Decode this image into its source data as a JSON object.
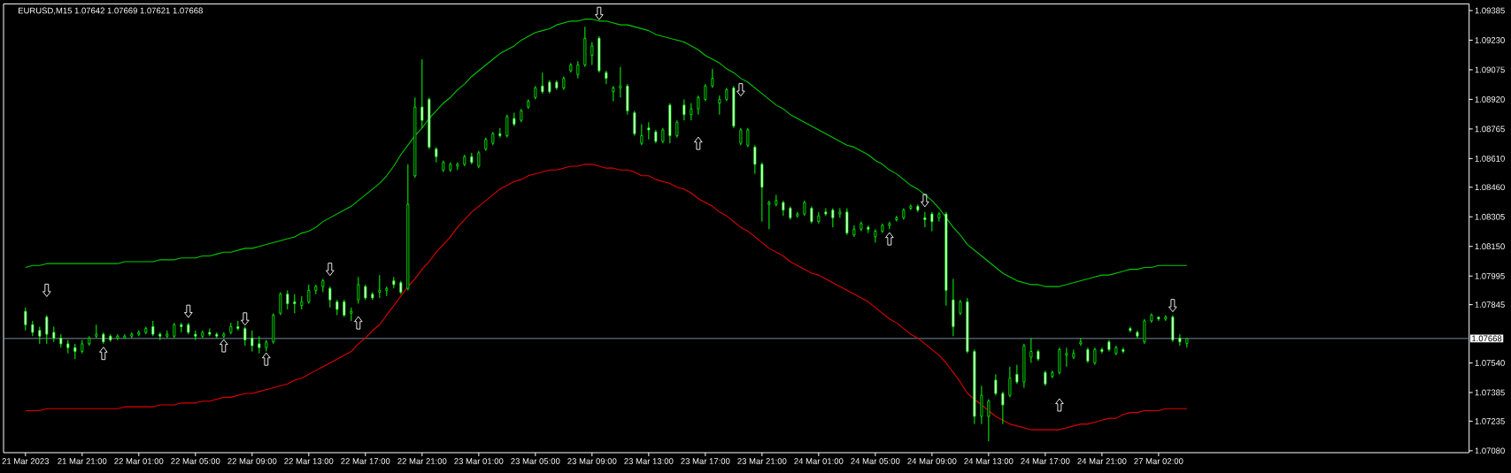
{
  "chart_data": {
    "type": "candlestick",
    "title": "EURUSD,M15 1.07642 1.07669 1.07621 1.07668",
    "categories": [
      "21 Mar 2023",
      null,
      null,
      null,
      null,
      null,
      null,
      null,
      "21 Mar 21:00",
      null,
      null,
      null,
      null,
      null,
      null,
      null,
      "22 Mar 01:00",
      null,
      null,
      null,
      null,
      null,
      null,
      null,
      "22 Mar 05:00",
      null,
      null,
      null,
      null,
      null,
      null,
      null,
      "22 Mar 09:00",
      null,
      null,
      null,
      null,
      null,
      null,
      null,
      "22 Mar 13:00",
      null,
      null,
      null,
      null,
      null,
      null,
      null,
      "22 Mar 17:00",
      null,
      null,
      null,
      null,
      null,
      null,
      null,
      "22 Mar 21:00",
      null,
      null,
      null,
      null,
      null,
      null,
      null,
      "23 Mar 01:00",
      null,
      null,
      null,
      null,
      null,
      null,
      null,
      "23 Mar 05:00",
      null,
      null,
      null,
      null,
      null,
      null,
      null,
      "23 Mar 09:00",
      null,
      null,
      null,
      null,
      null,
      null,
      null,
      "23 Mar 13:00",
      null,
      null,
      null,
      null,
      null,
      null,
      null,
      "23 Mar 17:00",
      null,
      null,
      null,
      null,
      null,
      null,
      null,
      "23 Mar 21:00",
      null,
      null,
      null,
      null,
      null,
      null,
      null,
      "24 Mar 01:00",
      null,
      null,
      null,
      null,
      null,
      null,
      null,
      "24 Mar 05:00",
      null,
      null,
      null,
      null,
      null,
      null,
      null,
      "24 Mar 09:00",
      null,
      null,
      null,
      null,
      null,
      null,
      null,
      "24 Mar 13:00",
      null,
      null,
      null,
      null,
      null,
      null,
      null,
      "24 Mar 17:00",
      null,
      null,
      null,
      null,
      null,
      null,
      null,
      "24 Mar 21:00",
      null,
      null,
      null,
      null,
      null,
      null,
      null,
      "27 Mar 02:00",
      null,
      null,
      null,
      null
    ],
    "ylim": [
      1.0707,
      1.0942
    ],
    "yticks": [
      {
        "value": 1.0708,
        "label": "1.07080"
      },
      {
        "value": 1.07235,
        "label": "1.07235"
      },
      {
        "value": 1.07385,
        "label": "1.07385"
      },
      {
        "value": 1.0754,
        "label": "1.07540"
      },
      {
        "value": 1.07845,
        "label": "1.07845"
      },
      {
        "value": 1.07995,
        "label": "1.07995"
      },
      {
        "value": 1.0815,
        "label": "1.08150"
      },
      {
        "value": 1.08305,
        "label": "1.08305"
      },
      {
        "value": 1.0846,
        "label": "1.08460"
      },
      {
        "value": 1.0861,
        "label": "1.08610"
      },
      {
        "value": 1.08765,
        "label": "1.08765"
      },
      {
        "value": 1.0892,
        "label": "1.08920"
      },
      {
        "value": 1.09075,
        "label": "1.09075"
      },
      {
        "value": 1.0923,
        "label": "1.09230"
      },
      {
        "value": 1.09385,
        "label": "1.09385"
      }
    ],
    "color": "#00ff00",
    "ohlc": [
      [
        1.0781,
        1.0783,
        1.0771,
        1.0774
      ],
      [
        1.0774,
        1.0776,
        1.0768,
        1.077
      ],
      [
        1.0771,
        1.0773,
        1.0764,
        1.0768
      ],
      [
        1.0778,
        1.0779,
        1.0764,
        1.0769
      ],
      [
        1.077,
        1.0773,
        1.0765,
        1.0767
      ],
      [
        1.0767,
        1.0769,
        1.0762,
        1.0764
      ],
      [
        1.0764,
        1.0766,
        1.0759,
        1.0762
      ],
      [
        1.0762,
        1.0764,
        1.0756,
        1.076
      ],
      [
        1.076,
        1.0766,
        1.0759,
        1.0764
      ],
      [
        1.0764,
        1.0768,
        1.0763,
        1.0767
      ],
      [
        1.0768,
        1.0774,
        1.0767,
        1.0769
      ],
      [
        1.0769,
        1.077,
        1.0764,
        1.0765
      ],
      [
        1.0768,
        1.0769,
        1.0765,
        1.0766
      ],
      [
        1.0767,
        1.0769,
        1.0766,
        1.0768
      ],
      [
        1.0767,
        1.0769,
        1.0767,
        1.0768
      ],
      [
        1.0768,
        1.077,
        1.0767,
        1.0769
      ],
      [
        1.0769,
        1.0771,
        1.0768,
        1.077
      ],
      [
        1.077,
        1.0773,
        1.0769,
        1.0772
      ],
      [
        1.0773,
        1.0776,
        1.0768,
        1.0769
      ],
      [
        1.0769,
        1.077,
        1.0766,
        1.0768
      ],
      [
        1.0768,
        1.0771,
        1.0767,
        1.0769
      ],
      [
        1.0768,
        1.0775,
        1.0767,
        1.0774
      ],
      [
        1.0774,
        1.0775,
        1.077,
        1.0773
      ],
      [
        1.0774,
        1.0775,
        1.0769,
        1.077
      ],
      [
        1.0769,
        1.0771,
        1.0766,
        1.0768
      ],
      [
        1.0768,
        1.0771,
        1.0767,
        1.077
      ],
      [
        1.077,
        1.0772,
        1.0768,
        1.0769
      ],
      [
        1.0769,
        1.077,
        1.0767,
        1.0768
      ],
      [
        1.0768,
        1.077,
        1.0767,
        1.0769
      ],
      [
        1.077,
        1.0775,
        1.0769,
        1.0773
      ],
      [
        1.0773,
        1.0776,
        1.0771,
        1.0772
      ],
      [
        1.0772,
        1.0773,
        1.0763,
        1.0766
      ],
      [
        1.0767,
        1.0771,
        1.076,
        1.0763
      ],
      [
        1.0764,
        1.0768,
        1.0759,
        1.0762
      ],
      [
        1.0762,
        1.0766,
        1.076,
        1.0765
      ],
      [
        1.0765,
        1.078,
        1.0764,
        1.0779
      ],
      [
        1.078,
        1.0791,
        1.0779,
        1.079
      ],
      [
        1.079,
        1.0792,
        1.0782,
        1.0785
      ],
      [
        1.0786,
        1.079,
        1.078,
        1.0785
      ],
      [
        1.0784,
        1.0789,
        1.0782,
        1.0786
      ],
      [
        1.0786,
        1.0795,
        1.0785,
        1.0792
      ],
      [
        1.0792,
        1.0795,
        1.079,
        1.0794
      ],
      [
        1.0794,
        1.0798,
        1.0791,
        1.0797
      ],
      [
        1.0793,
        1.0794,
        1.0783,
        1.0787
      ],
      [
        1.0786,
        1.0787,
        1.0779,
        1.0782
      ],
      [
        1.0786,
        1.0787,
        1.0778,
        1.0779
      ],
      [
        1.078,
        1.0783,
        1.0776,
        1.0781
      ],
      [
        1.0787,
        1.0799,
        1.0785,
        1.0795
      ],
      [
        1.0794,
        1.0795,
        1.0787,
        1.0788
      ],
      [
        1.079,
        1.0791,
        1.0787,
        1.0788
      ],
      [
        1.0791,
        1.08,
        1.0788,
        1.0792
      ],
      [
        1.0792,
        1.0794,
        1.0789,
        1.0793
      ],
      [
        1.0797,
        1.0799,
        1.0793,
        1.0795
      ],
      [
        1.0796,
        1.0797,
        1.079,
        1.0791
      ],
      [
        1.0793,
        1.0858,
        1.0792,
        1.0837
      ],
      [
        1.0852,
        1.0893,
        1.0851,
        1.0888
      ],
      [
        1.0888,
        1.0913,
        1.0877,
        1.0881
      ],
      [
        1.0892,
        1.0893,
        1.0866,
        1.0867
      ],
      [
        1.0866,
        1.0867,
        1.0859,
        1.0862
      ],
      [
        1.0855,
        1.086,
        1.0854,
        1.0859
      ],
      [
        1.0855,
        1.0859,
        1.0854,
        1.0858
      ],
      [
        1.0857,
        1.0859,
        1.0855,
        1.0858
      ],
      [
        1.0858,
        1.0863,
        1.0857,
        1.0862
      ],
      [
        1.0862,
        1.0864,
        1.0858,
        1.0859
      ],
      [
        1.0857,
        1.0865,
        1.0856,
        1.0864
      ],
      [
        1.0866,
        1.0872,
        1.0865,
        1.0871
      ],
      [
        1.0869,
        1.0875,
        1.0868,
        1.0874
      ],
      [
        1.0874,
        1.0877,
        1.0872,
        1.0873
      ],
      [
        1.0873,
        1.0884,
        1.0872,
        1.0883
      ],
      [
        1.0882,
        1.0885,
        1.0878,
        1.0879
      ],
      [
        1.0881,
        1.0887,
        1.088,
        1.0886
      ],
      [
        1.0888,
        1.0892,
        1.0887,
        1.0891
      ],
      [
        1.0893,
        1.0899,
        1.0892,
        1.0898
      ],
      [
        1.0899,
        1.0906,
        1.0895,
        1.0896
      ],
      [
        1.0901,
        1.0902,
        1.0895,
        1.0896
      ],
      [
        1.0901,
        1.0902,
        1.0897,
        1.0898
      ],
      [
        1.0898,
        1.0904,
        1.0897,
        1.0903
      ],
      [
        1.0907,
        1.0911,
        1.0906,
        1.091
      ],
      [
        1.0905,
        1.0912,
        1.0903,
        1.091
      ],
      [
        1.091,
        1.093,
        1.0909,
        1.0924
      ],
      [
        1.0915,
        1.0922,
        1.091,
        1.092
      ],
      [
        1.0924,
        1.0925,
        1.0906,
        1.0907
      ],
      [
        1.0906,
        1.0907,
        1.09,
        1.0903
      ],
      [
        1.0896,
        1.0899,
        1.0891,
        1.0898
      ],
      [
        1.0898,
        1.0909,
        1.0893,
        1.0899
      ],
      [
        1.0899,
        1.09,
        1.0884,
        1.0886
      ],
      [
        1.0885,
        1.0886,
        1.0873,
        1.0874
      ],
      [
        1.0869,
        1.0879,
        1.0868,
        1.0873
      ],
      [
        1.0877,
        1.088,
        1.0871,
        1.0876
      ],
      [
        1.0875,
        1.0876,
        1.0869,
        1.087
      ],
      [
        1.087,
        1.0877,
        1.0869,
        1.0876
      ],
      [
        1.0889,
        1.089,
        1.0869,
        1.0873
      ],
      [
        1.0873,
        1.0881,
        1.0872,
        1.088
      ],
      [
        1.0889,
        1.0892,
        1.0881,
        1.0884
      ],
      [
        1.0884,
        1.089,
        1.0881,
        1.0887
      ],
      [
        1.0887,
        1.0894,
        1.0884,
        1.0893
      ],
      [
        1.0892,
        1.09,
        1.0891,
        1.0899
      ],
      [
        1.0899,
        1.0908,
        1.0898,
        1.0903
      ],
      [
        1.089,
        1.0894,
        1.0884,
        1.0892
      ],
      [
        1.0892,
        1.0898,
        1.0891,
        1.0897
      ],
      [
        1.0898,
        1.0899,
        1.0877,
        1.0878
      ],
      [
        1.0869,
        1.0877,
        1.0868,
        1.0876
      ],
      [
        1.0868,
        1.0877,
        1.0867,
        1.0876
      ],
      [
        1.0867,
        1.0868,
        1.0853,
        1.0858
      ],
      [
        1.0858,
        1.0859,
        1.0828,
        1.0846
      ],
      [
        1.0837,
        1.0839,
        1.0824,
        1.0838
      ],
      [
        1.0837,
        1.0842,
        1.0836,
        1.0839
      ],
      [
        1.0838,
        1.0839,
        1.0831,
        1.0834
      ],
      [
        1.0835,
        1.0836,
        1.0829,
        1.083
      ],
      [
        1.0831,
        1.0833,
        1.083,
        1.0832
      ],
      [
        1.0832,
        1.0839,
        1.0831,
        1.0838
      ],
      [
        1.0835,
        1.0836,
        1.0827,
        1.0828
      ],
      [
        1.0828,
        1.0833,
        1.0827,
        1.0831
      ],
      [
        1.0833,
        1.0835,
        1.0831,
        1.0832
      ],
      [
        1.0834,
        1.0835,
        1.0825,
        1.083
      ],
      [
        1.0832,
        1.0835,
        1.083,
        1.0833
      ],
      [
        1.0833,
        1.0835,
        1.0821,
        1.0822
      ],
      [
        1.0821,
        1.0826,
        1.082,
        1.0824
      ],
      [
        1.0824,
        1.0828,
        1.0823,
        1.0827
      ],
      [
        1.0825,
        1.0826,
        1.0822,
        1.0824
      ],
      [
        1.082,
        1.0824,
        1.0817,
        1.0823
      ],
      [
        1.0823,
        1.0827,
        1.0822,
        1.0826
      ],
      [
        1.0826,
        1.0828,
        1.0824,
        1.0827
      ],
      [
        1.0829,
        1.0831,
        1.0828,
        1.083
      ],
      [
        1.083,
        1.0835,
        1.0829,
        1.0834
      ],
      [
        1.0835,
        1.0837,
        1.0834,
        1.0836
      ],
      [
        1.0836,
        1.0837,
        1.0833,
        1.0834
      ],
      [
        1.083,
        1.0833,
        1.0825,
        1.0829
      ],
      [
        1.0832,
        1.0833,
        1.0823,
        1.0828
      ],
      [
        1.083,
        1.0833,
        1.0828,
        1.0832
      ],
      [
        1.0832,
        1.0833,
        1.0784,
        1.0792
      ],
      [
        1.0787,
        1.0798,
        1.0768,
        1.0773
      ],
      [
        1.078,
        1.0787,
        1.0779,
        1.0786
      ],
      [
        1.0786,
        1.0788,
        1.0759,
        1.076
      ],
      [
        1.076,
        1.0761,
        1.0722,
        1.0726
      ],
      [
        1.0726,
        1.0742,
        1.0722,
        1.0737
      ],
      [
        1.0726,
        1.0735,
        1.0713,
        1.0734
      ],
      [
        1.0745,
        1.0748,
        1.0737,
        1.0738
      ],
      [
        1.0738,
        1.0739,
        1.0722,
        1.0732
      ],
      [
        1.0737,
        1.0752,
        1.0736,
        1.0746
      ],
      [
        1.0748,
        1.0753,
        1.0743,
        1.0744
      ],
      [
        1.0744,
        1.0764,
        1.0741,
        1.0763
      ],
      [
        1.0757,
        1.0767,
        1.0754,
        1.076
      ],
      [
        1.076,
        1.0761,
        1.0755,
        1.0756
      ],
      [
        1.0749,
        1.075,
        1.0742,
        1.0743
      ],
      [
        1.0747,
        1.075,
        1.0746,
        1.0749
      ],
      [
        1.0749,
        1.0762,
        1.0748,
        1.0761
      ],
      [
        1.0758,
        1.0762,
        1.0752,
        1.0759
      ],
      [
        1.0757,
        1.0761,
        1.0756,
        1.0759
      ],
      [
        1.0764,
        1.0767,
        1.0763,
        1.0765
      ],
      [
        1.0761,
        1.0762,
        1.0754,
        1.0755
      ],
      [
        1.0754,
        1.0762,
        1.0753,
        1.0761
      ],
      [
        1.0761,
        1.0762,
        1.0759,
        1.076
      ],
      [
        1.0765,
        1.0766,
        1.076,
        1.0761
      ],
      [
        1.0759,
        1.0763,
        1.0758,
        1.0762
      ],
      [
        1.0761,
        1.0762,
        1.0759,
        1.076
      ],
      [
        1.0772,
        1.0773,
        1.077,
        1.0771
      ],
      [
        1.077,
        1.0771,
        1.0767,
        1.0768
      ],
      [
        1.0765,
        1.0777,
        1.0764,
        1.0776
      ],
      [
        1.0776,
        1.078,
        1.0775,
        1.0779
      ],
      [
        1.0778,
        1.0778,
        1.0776,
        1.0777
      ],
      [
        1.0777,
        1.0779,
        1.0776,
        1.0778
      ],
      [
        1.0778,
        1.0779,
        1.0765,
        1.0766
      ],
      [
        1.0767,
        1.0769,
        1.0763,
        1.0765
      ],
      [
        1.07642,
        1.07669,
        1.07621,
        1.07668
      ]
    ],
    "colors": [
      "#ffffff",
      "#ffffff",
      "#ffffff",
      "#ffffff",
      "#ffffff",
      "#ffffff",
      "#ffffff",
      "#ffffff",
      "#000000",
      "#000000",
      "#000000",
      "#ffffff",
      "#ffffff",
      "#000000",
      "#000000",
      "#000000",
      "#000000",
      "#000000",
      "#ffffff",
      "#ffffff",
      "#000000",
      "#000000",
      "#ffffff",
      "#ffffff",
      "#ffffff",
      "#000000",
      "#ffffff",
      "#ffffff",
      "#000000",
      "#000000",
      "#ffffff",
      "#ffffff",
      "#ffffff",
      "#ffffff",
      "#000000",
      "#000000",
      "#000000",
      "#ffffff",
      "#ffffff",
      "#000000",
      "#000000",
      "#000000",
      "#000000",
      "#ffffff",
      "#ffffff",
      "#ffffff",
      "#000000",
      "#000000",
      "#ffffff",
      "#ffffff",
      "#000000",
      "#000000",
      "#ffffff",
      "#ffffff",
      "#000000",
      "#000000",
      "#ffffff",
      "#ffffff",
      "#ffffff",
      "#000000",
      "#000000",
      "#000000",
      "#000000",
      "#ffffff",
      "#000000",
      "#000000",
      "#000000",
      "#ffffff",
      "#000000",
      "#ffffff",
      "#000000",
      "#000000",
      "#000000",
      "#ffffff",
      "#ffffff",
      "#ffffff",
      "#000000",
      "#000000",
      "#000000",
      "#000000",
      "#000000",
      "#ffffff",
      "#ffffff",
      "#000000",
      "#000000",
      "#ffffff",
      "#ffffff",
      "#000000",
      "#ffffff",
      "#ffffff",
      "#000000",
      "#ffffff",
      "#000000",
      "#ffffff",
      "#000000",
      "#000000",
      "#000000",
      "#000000",
      "#000000",
      "#000000",
      "#ffffff",
      "#000000",
      "#000000",
      "#ffffff",
      "#ffffff",
      "#000000",
      "#000000",
      "#ffffff",
      "#ffffff",
      "#000000",
      "#000000",
      "#ffffff",
      "#000000",
      "#ffffff",
      "#ffffff",
      "#000000",
      "#ffffff",
      "#000000",
      "#000000",
      "#ffffff",
      "#000000",
      "#000000",
      "#000000",
      "#000000",
      "#000000",
      "#000000",
      "#ffffff",
      "#ffffff",
      "#ffffff",
      "#000000",
      "#ffffff",
      "#ffffff",
      "#000000",
      "#ffffff",
      "#ffffff",
      "#000000",
      "#000000",
      "#ffffff",
      "#ffffff",
      "#000000",
      "#ffffff",
      "#000000",
      "#000000",
      "#ffffff",
      "#ffffff",
      "#000000",
      "#000000",
      "#000000",
      "#000000",
      "#000000",
      "#ffffff",
      "#000000",
      "#ffffff",
      "#ffffff",
      "#000000",
      "#ffffff",
      "#ffffff",
      "#ffffff",
      "#000000",
      "#000000",
      "#ffffff",
      "#000000",
      "#ffffff",
      "#ffffff",
      "#000000"
    ],
    "series": [
      {
        "type": "line",
        "color": "#00c800",
        "values": [
          1.0804,
          1.0805,
          1.0805,
          1.0806,
          1.0806,
          1.0806,
          1.0806,
          1.0806,
          1.0806,
          1.0806,
          1.0806,
          1.0806,
          1.0806,
          1.0806,
          1.0807,
          1.0807,
          1.0807,
          1.0807,
          1.0807,
          1.0808,
          1.0808,
          1.0808,
          1.0809,
          1.0809,
          1.0809,
          1.081,
          1.081,
          1.0811,
          1.0812,
          1.0812,
          1.0813,
          1.0814,
          1.0814,
          1.0815,
          1.0816,
          1.0817,
          1.0818,
          1.0819,
          1.082,
          1.0822,
          1.0823,
          1.0825,
          1.0828,
          1.083,
          1.0832,
          1.0834,
          1.0836,
          1.0839,
          1.0842,
          1.0845,
          1.0848,
          1.0852,
          1.0857,
          1.0863,
          1.0868,
          1.0873,
          1.0877,
          1.0882,
          1.0886,
          1.089,
          1.0893,
          1.0897,
          1.09,
          1.0904,
          1.0907,
          1.091,
          1.0913,
          1.0916,
          1.0918,
          1.092,
          1.0923,
          1.0925,
          1.0927,
          1.0928,
          1.0929,
          1.0931,
          1.0932,
          1.0933,
          1.0933,
          1.0934,
          1.0934,
          1.0933,
          1.0933,
          1.0932,
          1.0931,
          1.0931,
          1.093,
          1.0929,
          1.0928,
          1.0926,
          1.0925,
          1.0924,
          1.0923,
          1.0922,
          1.092,
          1.0918,
          1.0915,
          1.0913,
          1.0911,
          1.0908,
          1.0906,
          1.0903,
          1.0901,
          1.0898,
          1.0895,
          1.0892,
          1.0889,
          1.0887,
          1.0884,
          1.0882,
          1.088,
          1.0878,
          1.0876,
          1.0874,
          1.0872,
          1.087,
          1.0868,
          1.0867,
          1.0865,
          1.0863,
          1.086,
          1.0858,
          1.0855,
          1.0853,
          1.085,
          1.0847,
          1.0845,
          1.0842,
          1.0839,
          1.0835,
          1.083,
          1.0825,
          1.0821,
          1.0816,
          1.0813,
          1.081,
          1.0807,
          1.0804,
          1.0801,
          1.0799,
          1.0797,
          1.0796,
          1.0795,
          1.0795,
          1.0794,
          1.0794,
          1.0794,
          1.0795,
          1.0796,
          1.0797,
          1.0798,
          1.0799,
          1.08,
          1.08,
          1.0801,
          1.0802,
          1.0803,
          1.0803,
          1.0804,
          1.0804,
          1.0805,
          1.0805,
          1.0805,
          1.0805,
          1.0805
        ]
      },
      {
        "type": "line",
        "color": "#e00000",
        "values": [
          1.0729,
          1.0729,
          1.0729,
          1.073,
          1.073,
          1.073,
          1.073,
          1.073,
          1.073,
          1.073,
          1.073,
          1.073,
          1.073,
          1.073,
          1.0731,
          1.0731,
          1.0731,
          1.0731,
          1.0731,
          1.0732,
          1.0732,
          1.0732,
          1.0733,
          1.0733,
          1.0733,
          1.0734,
          1.0734,
          1.0735,
          1.0736,
          1.0736,
          1.0737,
          1.0738,
          1.0738,
          1.0739,
          1.074,
          1.0741,
          1.0742,
          1.0743,
          1.0745,
          1.0746,
          1.0748,
          1.075,
          1.0752,
          1.0754,
          1.0756,
          1.0758,
          1.076,
          1.0764,
          1.0767,
          1.0771,
          1.0774,
          1.0779,
          1.0784,
          1.0789,
          1.0794,
          1.0798,
          1.0803,
          1.0807,
          1.0812,
          1.0816,
          1.082,
          1.0825,
          1.0829,
          1.0833,
          1.0836,
          1.0839,
          1.0842,
          1.0845,
          1.0847,
          1.0849,
          1.085,
          1.0852,
          1.0853,
          1.0854,
          1.0855,
          1.0855,
          1.0856,
          1.0857,
          1.0857,
          1.0858,
          1.0858,
          1.0857,
          1.0856,
          1.0856,
          1.0855,
          1.0855,
          1.0854,
          1.0852,
          1.0852,
          1.085,
          1.0849,
          1.0848,
          1.0846,
          1.0845,
          1.0843,
          1.084,
          1.0838,
          1.0836,
          1.0833,
          1.0831,
          1.0828,
          1.0825,
          1.0823,
          1.082,
          1.0817,
          1.0814,
          1.0812,
          1.081,
          1.0807,
          1.0805,
          1.0803,
          1.0801,
          1.08,
          1.0798,
          1.0796,
          1.0794,
          1.0792,
          1.079,
          1.0788,
          1.0786,
          1.0783,
          1.078,
          1.0777,
          1.0775,
          1.0772,
          1.0769,
          1.0767,
          1.0764,
          1.0761,
          1.0758,
          1.0754,
          1.0749,
          1.0744,
          1.0738,
          1.0735,
          1.0732,
          1.0729,
          1.0726,
          1.0724,
          1.0722,
          1.0721,
          1.072,
          1.0719,
          1.0719,
          1.0719,
          1.0719,
          1.0719,
          1.072,
          1.0721,
          1.0722,
          1.0722,
          1.0723,
          1.0724,
          1.0725,
          1.0725,
          1.0727,
          1.0728,
          1.0728,
          1.0729,
          1.0729,
          1.0729,
          1.073,
          1.073,
          1.073,
          1.073
        ]
      },
      {
        "type": "scatter",
        "color": "#ffffff",
        "marker": "triangle",
        "values": [
          null,
          null,
          null,
          1.0792,
          null,
          null,
          null,
          null,
          null,
          null,
          null,
          1.0759,
          null,
          null,
          null,
          null,
          null,
          null,
          null,
          null,
          null,
          null,
          null,
          1.0781,
          null,
          null,
          null,
          null,
          1.0763,
          null,
          null,
          1.0777,
          null,
          null,
          1.0756,
          null,
          null,
          null,
          null,
          null,
          null,
          null,
          null,
          1.0803,
          null,
          null,
          null,
          1.0775,
          null,
          null,
          null,
          null,
          null,
          null,
          null,
          null,
          null,
          null,
          null,
          null,
          null,
          null,
          null,
          null,
          null,
          null,
          null,
          null,
          null,
          null,
          null,
          null,
          null,
          null,
          null,
          null,
          null,
          null,
          null,
          null,
          null,
          1.0937,
          null,
          null,
          null,
          null,
          null,
          null,
          null,
          null,
          null,
          null,
          null,
          null,
          null,
          1.0869,
          null,
          null,
          null,
          null,
          null,
          1.0897,
          null,
          null,
          null,
          null,
          null,
          null,
          null,
          null,
          null,
          null,
          null,
          null,
          null,
          null,
          null,
          null,
          null,
          null,
          null,
          null,
          1.0819,
          null,
          null,
          null,
          null,
          1.0839,
          null,
          null,
          null,
          null,
          null,
          null,
          null,
          null,
          null,
          null,
          null,
          null,
          null,
          null,
          null,
          null,
          null,
          null,
          1.0732,
          null,
          null,
          null,
          null,
          null,
          null,
          null,
          null,
          null,
          null,
          null,
          null,
          null,
          null,
          null,
          1.0784,
          null,
          null
        ]
      }
    ],
    "ref_lines": [
      {
        "axis": "y",
        "value": 1.07668,
        "label": "1.07668",
        "color": "#778899"
      }
    ]
  }
}
